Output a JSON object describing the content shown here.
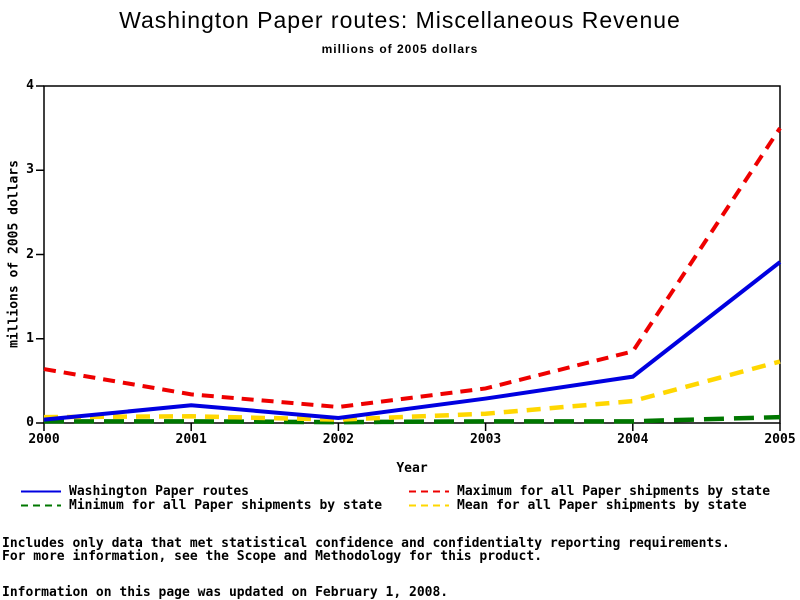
{
  "title": "Washington Paper routes: Miscellaneous Revenue",
  "subtitle": "millions of 2005 dollars",
  "chart_data": {
    "type": "line",
    "x": [
      "2000",
      "2001",
      "2002",
      "2003",
      "2004",
      "2005"
    ],
    "series": [
      {
        "name": "Washington Paper routes",
        "values": [
          0.04,
          0.21,
          0.06,
          0.29,
          0.55,
          1.91
        ],
        "color": "#0000e0",
        "dash": "solid",
        "width": 4
      },
      {
        "name": "Maximum for all Paper shipments by state",
        "values": [
          0.64,
          0.34,
          0.19,
          0.41,
          0.85,
          3.5
        ],
        "color": "#ee0000",
        "dash": "12 8",
        "width": 4
      },
      {
        "name": "Minimum for all Paper shipments by state",
        "values": [
          0.02,
          0.02,
          0.01,
          0.02,
          0.02,
          0.07
        ],
        "color": "#007700",
        "dash": "20 10",
        "width": 4.5
      },
      {
        "name": "Mean for all Paper shipments by state",
        "values": [
          0.07,
          0.08,
          0.04,
          0.11,
          0.26,
          0.73
        ],
        "color": "#ffd700",
        "dash": "14 9",
        "width": 4.5
      }
    ],
    "title": "Washington Paper routes: Miscellaneous Revenue",
    "subtitle": "millions of 2005 dollars",
    "xlabel": "Year",
    "ylabel": "millions of 2005 dollars",
    "ylim": [
      0,
      4
    ],
    "yticks": [
      0,
      1,
      2,
      3,
      4
    ],
    "grid": false,
    "legend_position": "bottom"
  },
  "footer": {
    "line1": "Includes only data that met statistical confidence and confidentialty reporting requirements.",
    "line2": "For more information, see the Scope and Methodology for this product.",
    "line3": "Information on this page was updated on February 1, 2008."
  }
}
